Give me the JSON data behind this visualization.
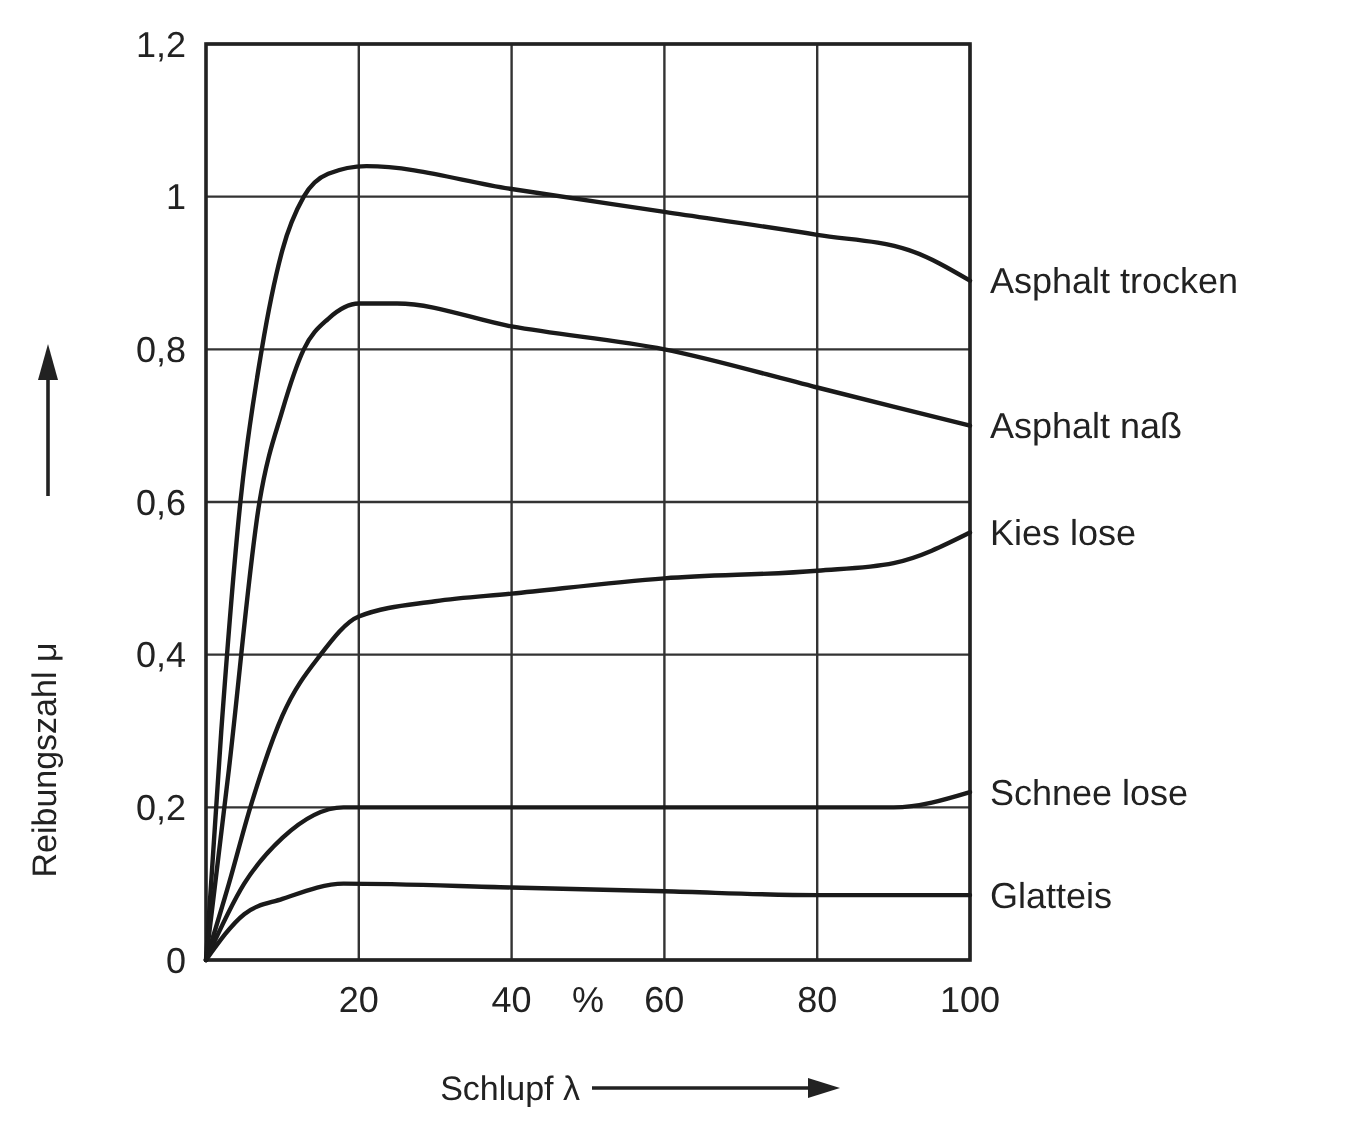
{
  "chart_data": {
    "type": "line",
    "xlabel": "Schlupf λ",
    "ylabel": "Reibungszahl μ",
    "annotations": [
      "%"
    ],
    "xlim": [
      0,
      100
    ],
    "ylim": [
      0,
      1.2
    ],
    "xticks": [
      20,
      40,
      60,
      80,
      100
    ],
    "yticks": [
      {
        "value": 0,
        "label": "0"
      },
      {
        "value": 0.2,
        "label": "0,2"
      },
      {
        "value": 0.4,
        "label": "0,4"
      },
      {
        "value": 0.6,
        "label": "0,6"
      },
      {
        "value": 0.8,
        "label": "0,8"
      },
      {
        "value": 1,
        "label": "1"
      },
      {
        "value": 1.2,
        "label": "1,2"
      }
    ],
    "grid": true,
    "line_style": "solid",
    "marker": "none",
    "series": [
      {
        "name": "Asphalt trocken",
        "color": "#1a1a1a",
        "x": [
          0,
          2,
          4.5,
          7.3,
          10,
          12.8,
          16,
          21,
          40,
          60,
          80,
          92,
          100
        ],
        "values": [
          0,
          0.3,
          0.6,
          0.8,
          0.93,
          1.0,
          1.03,
          1.04,
          1.01,
          0.98,
          0.95,
          0.93,
          0.89
        ]
      },
      {
        "name": "Asphalt naß",
        "color": "#1a1a1a",
        "x": [
          0,
          3,
          7,
          10,
          12.8,
          16,
          20,
          25,
          40,
          60,
          80,
          100
        ],
        "values": [
          0,
          0.25,
          0.6,
          0.72,
          0.8,
          0.84,
          0.86,
          0.86,
          0.83,
          0.8,
          0.75,
          0.7
        ]
      },
      {
        "name": "Kies lose",
        "color": "#1a1a1a",
        "x": [
          0,
          3,
          5.8,
          10,
          15,
          20,
          30,
          40,
          60,
          80,
          90,
          100
        ],
        "values": [
          0,
          0.1,
          0.2,
          0.32,
          0.4,
          0.45,
          0.47,
          0.48,
          0.5,
          0.51,
          0.52,
          0.56
        ]
      },
      {
        "name": "Schnee lose",
        "color": "#1a1a1a",
        "x": [
          0,
          5,
          10,
          18,
          40,
          90,
          100
        ],
        "values": [
          0,
          0.1,
          0.16,
          0.2,
          0.2,
          0.2,
          0.22
        ]
      },
      {
        "name": "Glatteis",
        "color": "#1a1a1a",
        "x": [
          0,
          5,
          10,
          18,
          40,
          60,
          80,
          100
        ],
        "values": [
          0,
          0.06,
          0.08,
          0.1,
          0.095,
          0.09,
          0.085,
          0.085
        ]
      }
    ]
  }
}
